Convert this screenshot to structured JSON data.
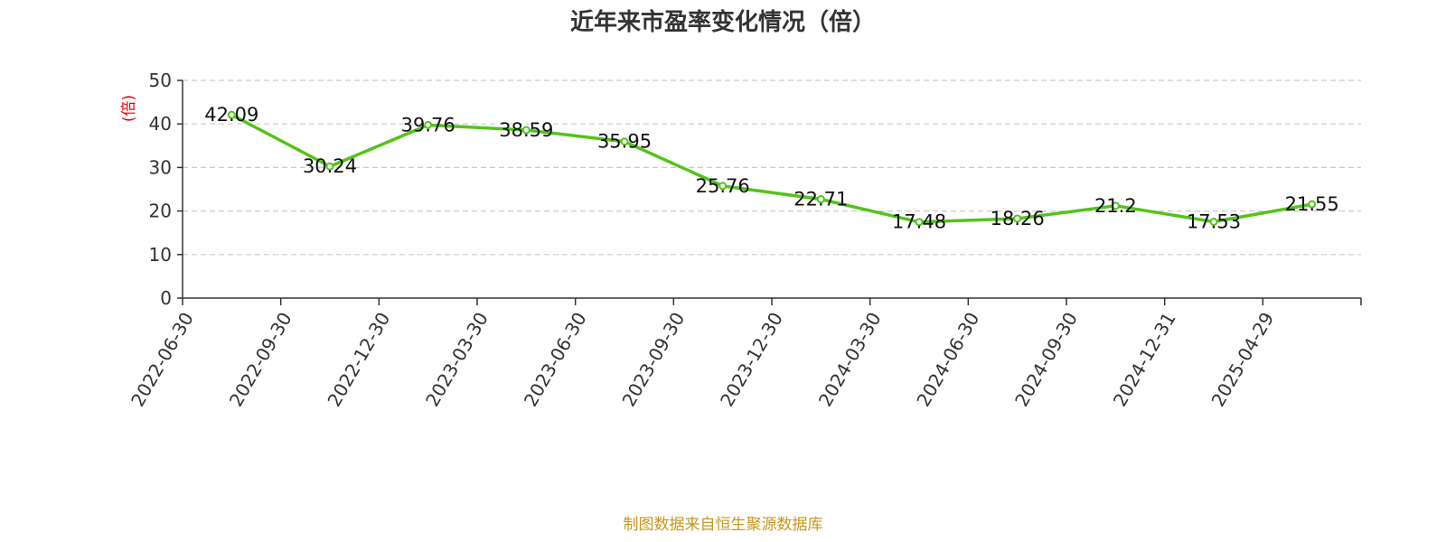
{
  "chart_data": {
    "type": "line",
    "title": "近年来市盈率变化情况（倍）",
    "ylabel": "(倍)",
    "xlabel": "",
    "categories": [
      "2022-06-30",
      "2022-09-30",
      "2022-12-30",
      "2023-03-30",
      "2023-06-30",
      "2023-09-30",
      "2023-12-30",
      "2024-03-30",
      "2024-06-30",
      "2024-09-30",
      "2024-12-31",
      "2025-04-29"
    ],
    "values": [
      42.09,
      30.24,
      39.76,
      38.59,
      35.95,
      25.76,
      22.71,
      17.48,
      18.26,
      21.2,
      17.53,
      21.55
    ],
    "data_labels": [
      "42.09",
      "30.24",
      "39.76",
      "38.59",
      "35.95",
      "25.76",
      "22.71",
      "17.48",
      "18.26",
      "21.2",
      "17.53",
      "21.55"
    ],
    "ylim": [
      0,
      50
    ],
    "yticks": [
      "0",
      "10",
      "20",
      "30",
      "40",
      "50"
    ],
    "grid": true,
    "legend": "none"
  },
  "source_note": "制图数据来自恒生聚源数据库",
  "colors": {
    "line": "#52c41a",
    "marker_fill": "#ffffff",
    "axis": "#333333",
    "grid": "#cccccc",
    "ylabel": "#e60000",
    "source": "#c8961e",
    "title": "#333333"
  }
}
